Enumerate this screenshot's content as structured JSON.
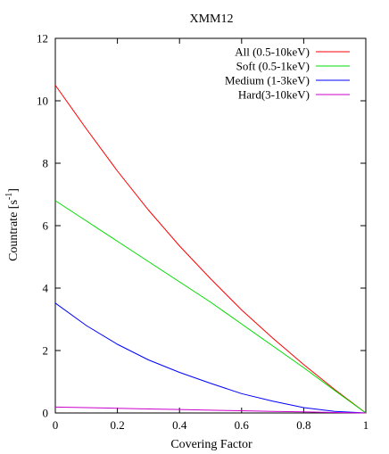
{
  "chart_data": {
    "type": "line",
    "title": "XMM12",
    "xlabel": "Covering Factor",
    "ylabel_main": "Countrate [s",
    "ylabel_sup": "-1",
    "ylabel_tail": "]",
    "xlim": [
      0,
      1
    ],
    "ylim": [
      0,
      12
    ],
    "x_ticks": [
      0,
      0.2,
      0.4,
      0.6,
      0.8,
      1
    ],
    "x_tick_labels": [
      "0",
      "0.2",
      "0.4",
      "0.6",
      "0.8",
      "1"
    ],
    "y_ticks": [
      0,
      2,
      4,
      6,
      8,
      10,
      12
    ],
    "y_tick_labels": [
      "0",
      "2",
      "4",
      "6",
      "8",
      "10",
      "12"
    ],
    "grid": false,
    "legend_position": "top-right",
    "x": [
      0,
      0.1,
      0.2,
      0.3,
      0.4,
      0.5,
      0.6,
      0.7,
      0.8,
      0.9,
      1.0
    ],
    "series": [
      {
        "name": "All (0.5-10keV)",
        "color": "#ff0000",
        "values": [
          10.5,
          9.1,
          7.75,
          6.5,
          5.35,
          4.3,
          3.3,
          2.4,
          1.55,
          0.75,
          0.0
        ]
      },
      {
        "name": "Soft (0.5-1keV)",
        "color": "#00dd00",
        "values": [
          6.8,
          6.15,
          5.5,
          4.85,
          4.2,
          3.55,
          2.85,
          2.15,
          1.45,
          0.72,
          0.0
        ]
      },
      {
        "name": "Medium (1-3keV)",
        "color": "#0000ff",
        "values": [
          3.52,
          2.8,
          2.2,
          1.7,
          1.3,
          0.95,
          0.62,
          0.38,
          0.17,
          0.05,
          0.0
        ]
      },
      {
        "name": "Hard(3-10keV)",
        "color": "#cc00cc",
        "values": [
          0.19,
          0.17,
          0.15,
          0.13,
          0.11,
          0.09,
          0.07,
          0.05,
          0.035,
          0.015,
          0.0
        ]
      }
    ]
  }
}
